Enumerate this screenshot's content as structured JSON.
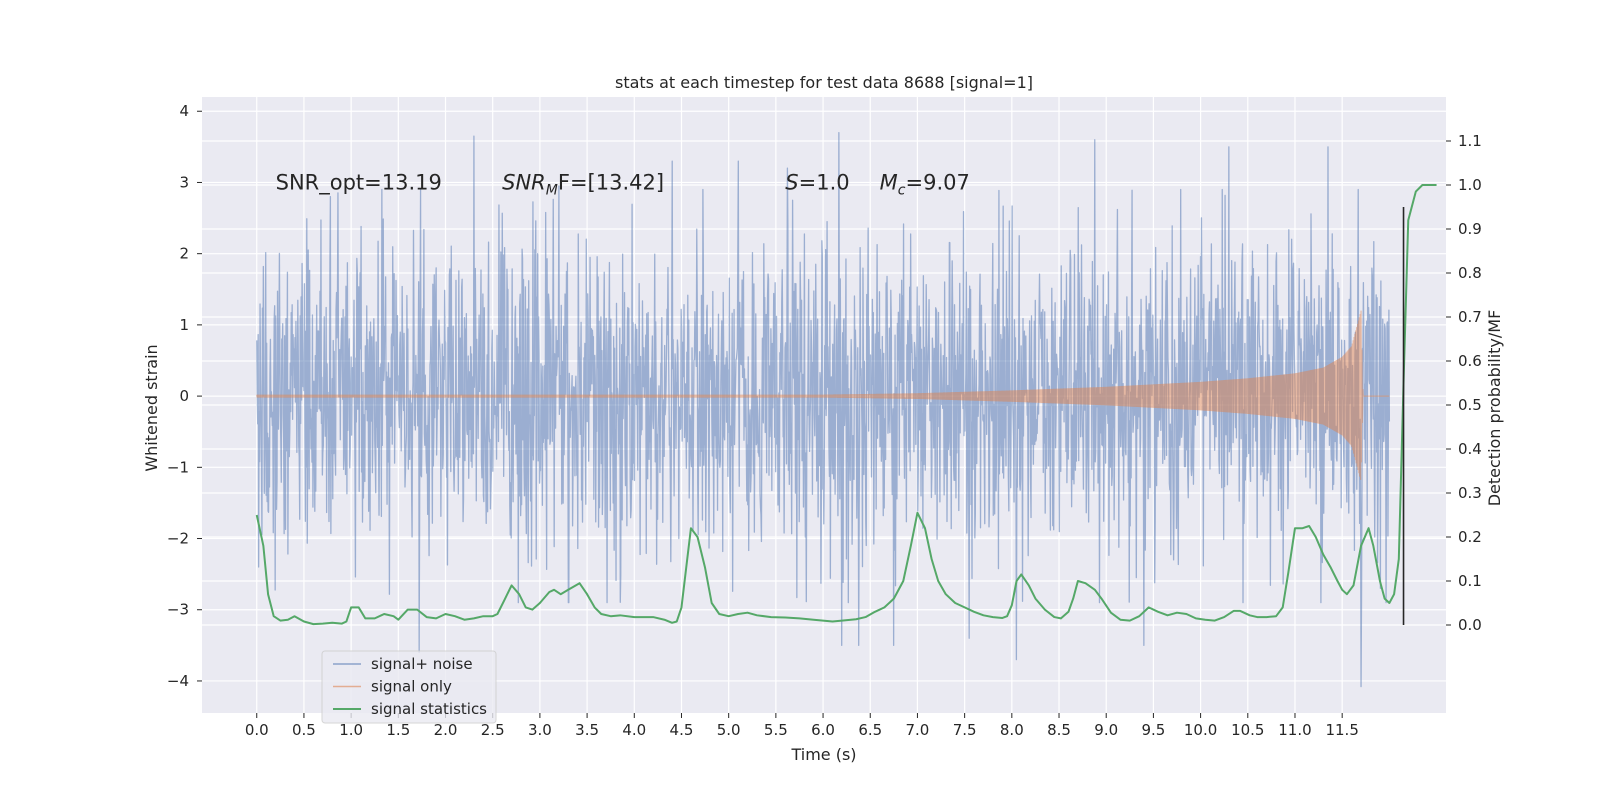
{
  "chart_data": {
    "type": "line",
    "title": "stats at each timestep for test data 8688 [signal=1]",
    "xlabel": "Time (s)",
    "ylabel": "Whitened strain",
    "y2label": "Detection probability/MF",
    "xlim": [
      -0.58,
      12.6
    ],
    "ylim": [
      -4.45,
      4.2
    ],
    "y2lim": [
      -0.2,
      1.2
    ],
    "x_ticks": [
      0.0,
      0.5,
      1.0,
      1.5,
      2.0,
      2.5,
      3.0,
      3.5,
      4.0,
      4.5,
      5.0,
      5.5,
      6.0,
      6.5,
      7.0,
      7.5,
      8.0,
      8.5,
      9.0,
      9.5,
      10.0,
      10.5,
      11.0,
      11.5
    ],
    "x_tick_labels": [
      "0.0",
      "0.5",
      "1.0",
      "1.5",
      "2.0",
      "2.5",
      "3.0",
      "3.5",
      "4.0",
      "4.5",
      "5.0",
      "5.5",
      "6.0",
      "6.5",
      "7.0",
      "7.5",
      "8.0",
      "8.5",
      "9.0",
      "9.5",
      "10.0",
      "10.5",
      "11.0",
      "11.5"
    ],
    "y_ticks": [
      -4,
      -3,
      -2,
      -1,
      0,
      1,
      2,
      3,
      4
    ],
    "y_tick_labels": [
      "−4",
      "−3",
      "−2",
      "−1",
      "0",
      "1",
      "2",
      "3",
      "4"
    ],
    "y2_ticks": [
      0.0,
      0.1,
      0.2,
      0.3,
      0.4,
      0.5,
      0.6,
      0.7,
      0.8,
      0.9,
      1.0,
      1.1
    ],
    "y2_tick_labels": [
      "0.0",
      "0.1",
      "0.2",
      "0.3",
      "0.4",
      "0.5",
      "0.6",
      "0.7",
      "0.8",
      "0.9",
      "1.0",
      "1.1"
    ],
    "grid": true,
    "legend_position": "lower-left",
    "annotations": [
      {
        "text": "SNR_opt=13.19",
        "x": 0.2,
        "y": 3.0
      },
      {
        "text_main": "SNR",
        "text_sub": "M",
        "text_rest": "F=[13.42]",
        "x": 2.6,
        "y": 3.0
      },
      {
        "text_main": "S",
        "text_rest": "=1.0",
        "x": 5.6,
        "y": 3.0
      },
      {
        "text_main": "M",
        "text_sub": "c",
        "text_rest": "=9.07",
        "x": 6.6,
        "y": 3.0
      }
    ],
    "series": [
      {
        "name": "signal+ noise",
        "axis": "left",
        "color": "#4c72b0",
        "opacity": 0.5,
        "kind": "noise",
        "x_range": [
          0.0,
          12.0
        ],
        "typical_amplitude": 1.75,
        "spike_peaks": [
          {
            "x": 0.02,
            "y": 2.5
          },
          {
            "x": 0.02,
            "y": -2.4
          },
          {
            "x": 0.78,
            "y": 2.8
          },
          {
            "x": 1.72,
            "y": -3.6
          },
          {
            "x": 2.3,
            "y": 3.65
          },
          {
            "x": 3.2,
            "y": 2.95
          },
          {
            "x": 4.4,
            "y": 3.3
          },
          {
            "x": 5.1,
            "y": 3.3
          },
          {
            "x": 5.62,
            "y": 3.2
          },
          {
            "x": 6.17,
            "y": 3.7
          },
          {
            "x": 6.2,
            "y": -3.5
          },
          {
            "x": 6.38,
            "y": -3.5
          },
          {
            "x": 6.75,
            "y": -3.5
          },
          {
            "x": 7.55,
            "y": -3.4
          },
          {
            "x": 8.05,
            "y": -3.7
          },
          {
            "x": 8.88,
            "y": 3.6
          },
          {
            "x": 9.4,
            "y": -3.5
          },
          {
            "x": 10.3,
            "y": 3.5
          },
          {
            "x": 11.35,
            "y": 3.5
          },
          {
            "x": 11.7,
            "y": 3.82
          },
          {
            "x": 11.7,
            "y": -4.08
          }
        ]
      },
      {
        "name": "signal only",
        "axis": "left",
        "color": "#dd8452",
        "opacity": 0.5,
        "kind": "chirp",
        "envelope": [
          [
            0.0,
            0.02
          ],
          [
            6.0,
            0.02
          ],
          [
            7.0,
            0.04
          ],
          [
            8.0,
            0.08
          ],
          [
            9.0,
            0.13
          ],
          [
            10.0,
            0.2
          ],
          [
            10.5,
            0.25
          ],
          [
            11.0,
            0.32
          ],
          [
            11.3,
            0.4
          ],
          [
            11.5,
            0.55
          ],
          [
            11.6,
            0.7
          ],
          [
            11.65,
            0.95
          ],
          [
            11.7,
            1.2
          ],
          [
            11.72,
            0.0
          ],
          [
            12.0,
            0.0
          ]
        ]
      },
      {
        "name": "signal statistics",
        "axis": "right",
        "color": "#55a868",
        "opacity": 1.0,
        "kind": "line",
        "points": [
          [
            0.0,
            0.25
          ],
          [
            0.07,
            0.18
          ],
          [
            0.12,
            0.07
          ],
          [
            0.18,
            0.02
          ],
          [
            0.25,
            0.01
          ],
          [
            0.33,
            0.012
          ],
          [
            0.4,
            0.02
          ],
          [
            0.5,
            0.008
          ],
          [
            0.6,
            0.002
          ],
          [
            0.7,
            0.003
          ],
          [
            0.8,
            0.005
          ],
          [
            0.9,
            0.003
          ],
          [
            0.95,
            0.008
          ],
          [
            1.0,
            0.04
          ],
          [
            1.08,
            0.04
          ],
          [
            1.15,
            0.015
          ],
          [
            1.25,
            0.015
          ],
          [
            1.35,
            0.025
          ],
          [
            1.45,
            0.02
          ],
          [
            1.5,
            0.012
          ],
          [
            1.6,
            0.035
          ],
          [
            1.7,
            0.035
          ],
          [
            1.8,
            0.018
          ],
          [
            1.9,
            0.015
          ],
          [
            2.0,
            0.025
          ],
          [
            2.1,
            0.02
          ],
          [
            2.2,
            0.012
          ],
          [
            2.3,
            0.015
          ],
          [
            2.4,
            0.02
          ],
          [
            2.5,
            0.02
          ],
          [
            2.55,
            0.025
          ],
          [
            2.62,
            0.055
          ],
          [
            2.7,
            0.09
          ],
          [
            2.78,
            0.07
          ],
          [
            2.85,
            0.04
          ],
          [
            2.92,
            0.035
          ],
          [
            3.0,
            0.05
          ],
          [
            3.1,
            0.075
          ],
          [
            3.15,
            0.08
          ],
          [
            3.22,
            0.07
          ],
          [
            3.3,
            0.08
          ],
          [
            3.42,
            0.095
          ],
          [
            3.5,
            0.07
          ],
          [
            3.58,
            0.04
          ],
          [
            3.65,
            0.025
          ],
          [
            3.75,
            0.02
          ],
          [
            3.85,
            0.022
          ],
          [
            4.0,
            0.018
          ],
          [
            4.2,
            0.018
          ],
          [
            4.32,
            0.012
          ],
          [
            4.4,
            0.005
          ],
          [
            4.45,
            0.008
          ],
          [
            4.5,
            0.04
          ],
          [
            4.55,
            0.13
          ],
          [
            4.6,
            0.22
          ],
          [
            4.67,
            0.2
          ],
          [
            4.75,
            0.13
          ],
          [
            4.82,
            0.05
          ],
          [
            4.9,
            0.025
          ],
          [
            5.0,
            0.02
          ],
          [
            5.1,
            0.025
          ],
          [
            5.2,
            0.028
          ],
          [
            5.3,
            0.022
          ],
          [
            5.45,
            0.018
          ],
          [
            5.6,
            0.017
          ],
          [
            5.75,
            0.015
          ],
          [
            5.9,
            0.012
          ],
          [
            6.0,
            0.01
          ],
          [
            6.1,
            0.008
          ],
          [
            6.2,
            0.01
          ],
          [
            6.35,
            0.013
          ],
          [
            6.45,
            0.018
          ],
          [
            6.55,
            0.03
          ],
          [
            6.65,
            0.04
          ],
          [
            6.75,
            0.06
          ],
          [
            6.85,
            0.1
          ],
          [
            6.93,
            0.18
          ],
          [
            7.0,
            0.255
          ],
          [
            7.08,
            0.22
          ],
          [
            7.15,
            0.15
          ],
          [
            7.22,
            0.1
          ],
          [
            7.3,
            0.07
          ],
          [
            7.4,
            0.05
          ],
          [
            7.5,
            0.04
          ],
          [
            7.6,
            0.03
          ],
          [
            7.7,
            0.022
          ],
          [
            7.8,
            0.018
          ],
          [
            7.9,
            0.016
          ],
          [
            7.95,
            0.02
          ],
          [
            8.0,
            0.045
          ],
          [
            8.05,
            0.1
          ],
          [
            8.1,
            0.115
          ],
          [
            8.18,
            0.09
          ],
          [
            8.25,
            0.06
          ],
          [
            8.35,
            0.035
          ],
          [
            8.45,
            0.018
          ],
          [
            8.52,
            0.015
          ],
          [
            8.6,
            0.03
          ],
          [
            8.65,
            0.06
          ],
          [
            8.7,
            0.1
          ],
          [
            8.78,
            0.095
          ],
          [
            8.88,
            0.08
          ],
          [
            8.95,
            0.06
          ],
          [
            9.05,
            0.028
          ],
          [
            9.15,
            0.012
          ],
          [
            9.25,
            0.01
          ],
          [
            9.35,
            0.02
          ],
          [
            9.45,
            0.04
          ],
          [
            9.55,
            0.03
          ],
          [
            9.65,
            0.022
          ],
          [
            9.75,
            0.028
          ],
          [
            9.85,
            0.025
          ],
          [
            9.95,
            0.015
          ],
          [
            10.05,
            0.012
          ],
          [
            10.15,
            0.01
          ],
          [
            10.25,
            0.018
          ],
          [
            10.35,
            0.032
          ],
          [
            10.42,
            0.032
          ],
          [
            10.52,
            0.022
          ],
          [
            10.6,
            0.018
          ],
          [
            10.7,
            0.018
          ],
          [
            10.8,
            0.02
          ],
          [
            10.87,
            0.04
          ],
          [
            10.93,
            0.12
          ],
          [
            11.0,
            0.22
          ],
          [
            11.08,
            0.22
          ],
          [
            11.15,
            0.225
          ],
          [
            11.22,
            0.2
          ],
          [
            11.3,
            0.16
          ],
          [
            11.38,
            0.13
          ],
          [
            11.45,
            0.1
          ],
          [
            11.5,
            0.08
          ],
          [
            11.55,
            0.07
          ],
          [
            11.62,
            0.09
          ],
          [
            11.7,
            0.18
          ],
          [
            11.78,
            0.22
          ],
          [
            11.83,
            0.18
          ],
          [
            11.9,
            0.1
          ],
          [
            11.95,
            0.06
          ],
          [
            12.0,
            0.05
          ],
          [
            12.05,
            0.07
          ],
          [
            12.1,
            0.15
          ],
          [
            12.15,
            0.55
          ],
          [
            12.2,
            0.92
          ],
          [
            12.28,
            0.985
          ],
          [
            12.35,
            1.0
          ],
          [
            12.5,
            1.0
          ]
        ]
      }
    ],
    "vertical_line": {
      "x": 12.15,
      "y_range": [
        -0.2,
        1.2
      ],
      "color": "#262626"
    }
  }
}
